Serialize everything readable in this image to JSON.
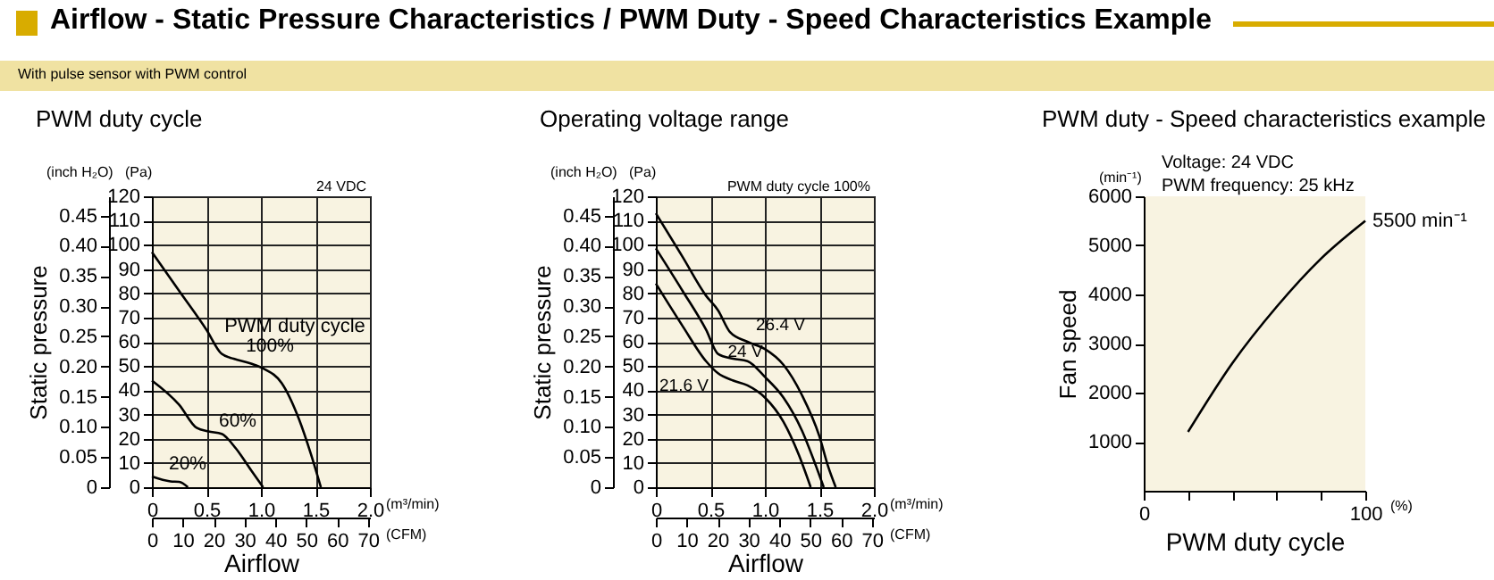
{
  "chart_data": [
    {
      "type": "line",
      "title": "PWM duty cycle",
      "xlabel": "Airflow",
      "y2label": "Static pressure",
      "legend_title": "PWM duty cycle",
      "annotations": [
        "Airflow - Static Pressure Characteristics / PWM Duty - Speed Characteristics Example",
        "With pulse sensor with PWM control",
        "(inch H₂O)",
        "(Pa)",
        "(m³/min)",
        "(CFM)",
        "24 VDC"
      ],
      "xlim": [
        0,
        2
      ],
      "xticks": [
        0,
        0.5,
        {
          "value": 1,
          "label": "1.0"
        },
        1.5,
        {
          "value": 2,
          "label": "2.0"
        }
      ],
      "x2lim": [
        0,
        70.63
      ],
      "x2ticks": [
        0,
        10,
        20,
        30,
        40,
        50,
        60,
        70
      ],
      "ylim": [
        0,
        120
      ],
      "yticks": [
        0,
        10,
        20,
        30,
        40,
        50,
        60,
        70,
        80,
        90,
        100,
        110,
        120
      ],
      "y2lim": [
        0,
        0.4818
      ],
      "y2ticks": [
        0,
        0.05,
        {
          "value": 0.1,
          "label": "0.10"
        },
        0.15,
        {
          "value": 0.2,
          "label": "0.20"
        },
        0.25,
        {
          "value": 0.3,
          "label": "0.30"
        },
        0.35,
        {
          "value": 0.4,
          "label": "0.40"
        },
        0.45
      ],
      "grid": true,
      "series": [
        {
          "name": "100%",
          "color": "#000000",
          "x": [
            0,
            0.25,
            0.5,
            0.64,
            0.75,
            0.91,
            1.02,
            1.19,
            1.35,
            1.46,
            1.55
          ],
          "values": [
            97,
            81,
            65,
            55,
            53,
            51,
            49,
            43,
            28,
            13.5,
            0
          ]
        },
        {
          "name": "60%",
          "color": "#000000",
          "x": [
            0,
            0.25,
            0.41,
            0.52,
            0.64,
            0.77,
            0.91,
            1.02
          ],
          "values": [
            44,
            34,
            24.5,
            23,
            22,
            16,
            7,
            0
          ]
        },
        {
          "name": "20%",
          "color": "#000000",
          "x": [
            0,
            0.17,
            0.25,
            0.33
          ],
          "values": [
            4.4,
            2.4,
            2.2,
            0
          ]
        }
      ]
    },
    {
      "type": "line",
      "title": "Operating voltage range",
      "xlabel": "Airflow",
      "y2label": "Static pressure",
      "annotations": [
        "(inch H₂O)",
        "(Pa)",
        "(m³/min)",
        "(CFM)",
        "PWM duty cycle 100%"
      ],
      "xlim": [
        0,
        2
      ],
      "xticks": [
        0,
        0.5,
        {
          "value": 1,
          "label": "1.0"
        },
        1.5,
        {
          "value": 2,
          "label": "2.0"
        }
      ],
      "x2lim": [
        0,
        70.63
      ],
      "x2ticks": [
        0,
        10,
        20,
        30,
        40,
        50,
        60,
        70
      ],
      "ylim": [
        0,
        120
      ],
      "yticks": [
        0,
        10,
        20,
        30,
        40,
        50,
        60,
        70,
        80,
        90,
        100,
        110,
        120
      ],
      "y2lim": [
        0,
        0.4818
      ],
      "y2ticks": [
        0,
        0.05,
        {
          "value": 0.1,
          "label": "0.10"
        },
        0.15,
        {
          "value": 0.2,
          "label": "0.20"
        },
        0.25,
        {
          "value": 0.3,
          "label": "0.30"
        },
        0.35,
        {
          "value": 0.4,
          "label": "0.40"
        },
        0.45
      ],
      "grid": true,
      "series": [
        {
          "name": "26.4 V",
          "color": "#000000",
          "x": [
            0,
            0.245,
            0.46,
            0.57,
            0.68,
            0.84,
            1.0,
            1.17,
            1.34,
            1.5,
            1.58,
            1.65
          ],
          "values": [
            113,
            95,
            79,
            73,
            64,
            60,
            57,
            50.5,
            38,
            21,
            8.6,
            0
          ]
        },
        {
          "name": "24 V",
          "color": "#000000",
          "x": [
            0,
            0.245,
            0.46,
            0.57,
            0.71,
            0.84,
            1.0,
            1.17,
            1.34,
            1.47,
            1.54
          ],
          "values": [
            98.5,
            81,
            65,
            55,
            53,
            52,
            45.5,
            37,
            23.4,
            8.6,
            0
          ]
        },
        {
          "name": "21.6 V",
          "color": "#000000",
          "x": [
            0,
            0.245,
            0.46,
            0.57,
            0.71,
            0.84,
            1.0,
            1.17,
            1.31,
            1.42
          ],
          "values": [
            84,
            66.5,
            52,
            47,
            44,
            42,
            37,
            27,
            13.5,
            0
          ]
        }
      ]
    },
    {
      "type": "line",
      "title": "PWM duty - Speed characteristics example",
      "xlabel": "PWM duty cycle",
      "ylabel": "Fan speed",
      "annotations": [
        "Voltage: 24 VDC",
        "PWM frequency: 25 kHz",
        "(min⁻¹)",
        "(%)",
        {
          "text": "5500 min⁻¹",
          "x": 100,
          "y": 5500
        }
      ],
      "x": [
        20,
        40,
        60,
        80,
        100
      ],
      "xlim": [
        0,
        100
      ],
      "xticks": [
        0,
        {
          "value": 20,
          "label": null
        },
        {
          "value": 40,
          "label": null
        },
        {
          "value": 60,
          "label": null
        },
        {
          "value": 80,
          "label": null
        },
        100
      ],
      "ylim": [
        0,
        6000
      ],
      "yticks": [
        1000,
        2000,
        3000,
        4000,
        5000,
        6000
      ],
      "series": [
        {
          "color": "#000000",
          "values": [
            1200,
            2600,
            3750,
            4730,
            5500
          ]
        }
      ]
    }
  ]
}
